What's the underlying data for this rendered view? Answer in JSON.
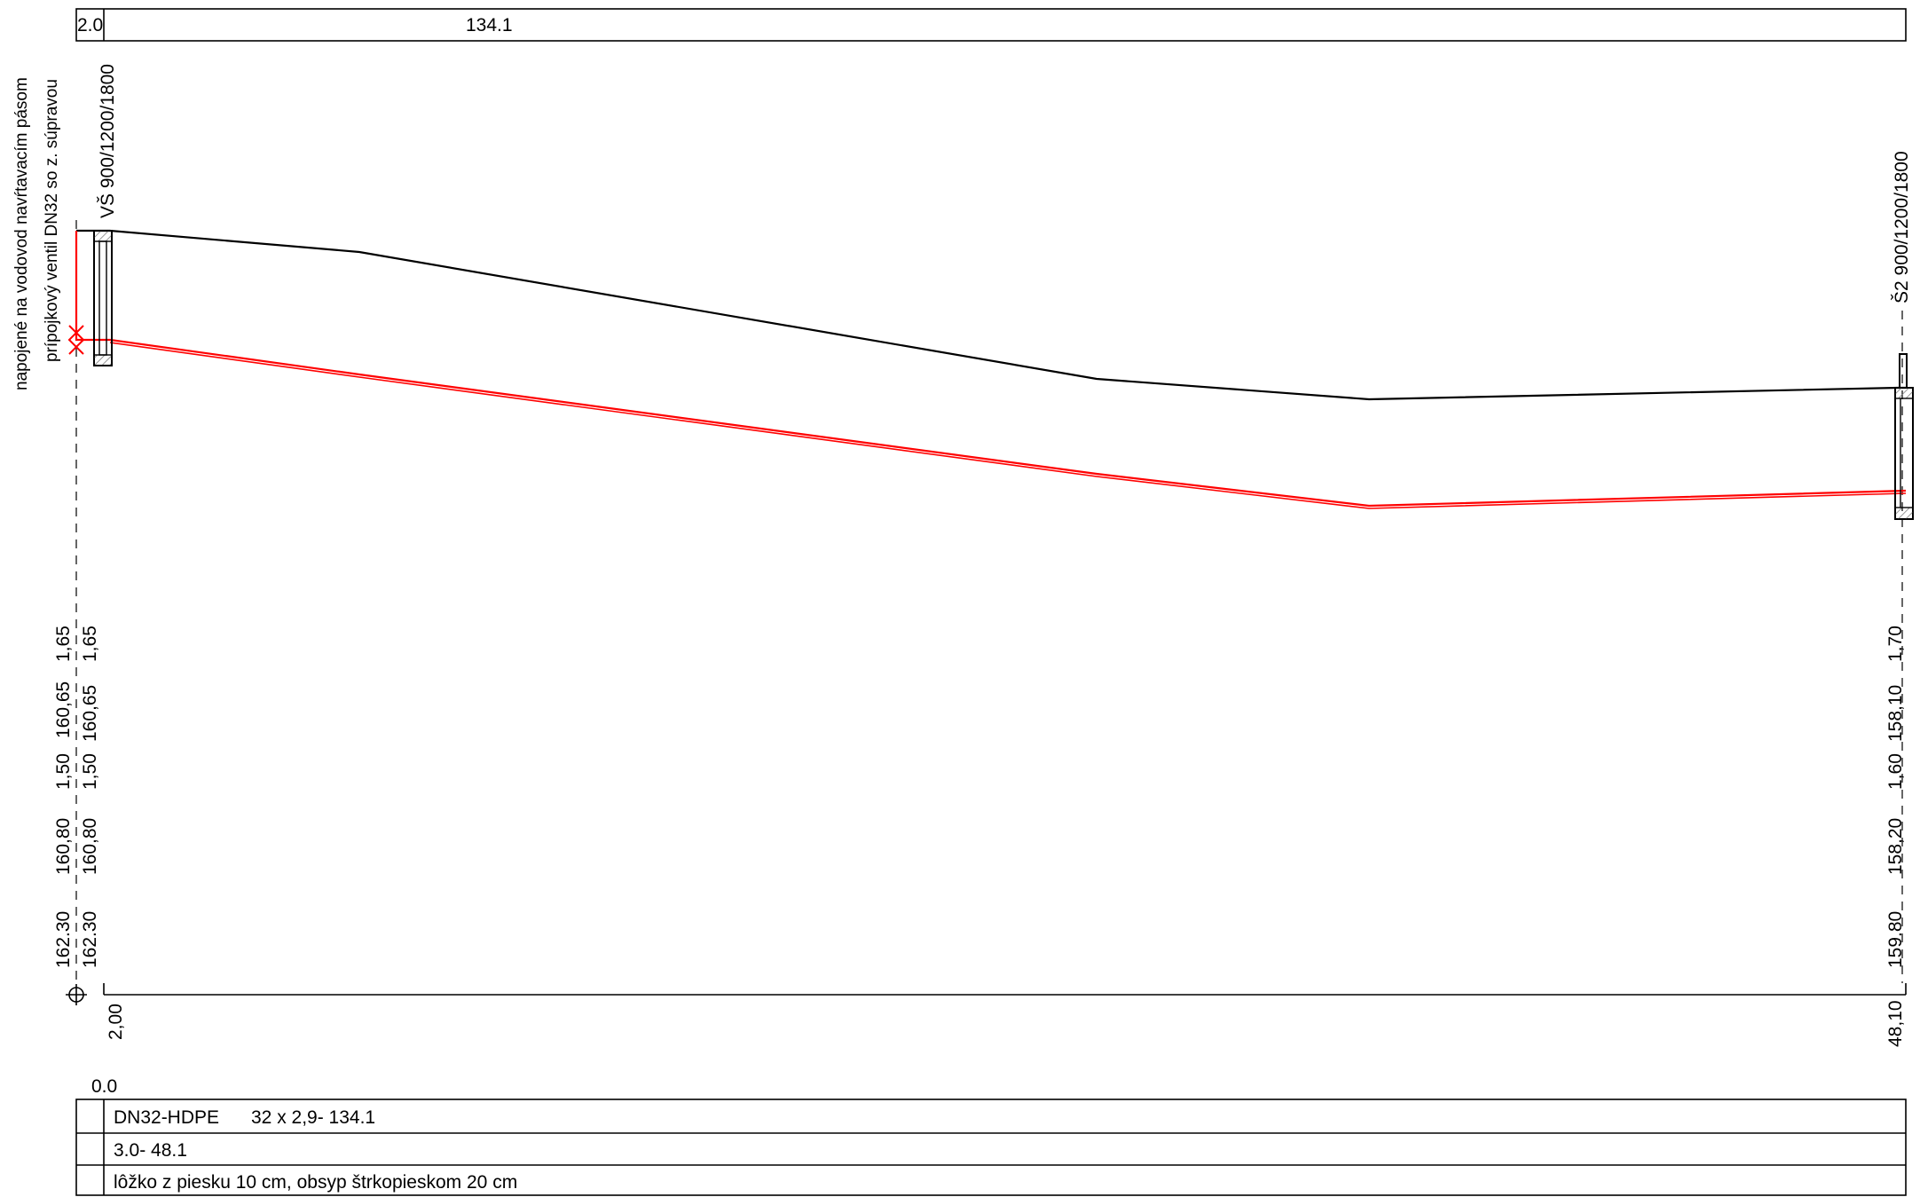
{
  "top_bar": {
    "left_value": "2.0",
    "total_value": "134.1"
  },
  "wells": {
    "left": {
      "name": "VŠ 900/1200/1800",
      "note_line1": "napojené na vodovod navŕtavacím pásom",
      "note_line2": "prípojkový ventil DN32 so z. súpravou"
    },
    "right": {
      "name": "Š2 900/1200/1800"
    }
  },
  "left_columns": {
    "col_a": [
      "1,65",
      "160,65",
      "1,50",
      "160,80",
      "162.30"
    ],
    "col_b": [
      "1,65",
      "160,65",
      "1,50",
      "160,80",
      "162.30"
    ]
  },
  "right_column": [
    "1,70",
    "158,10",
    "1,60",
    "158,20",
    "159.80"
  ],
  "stations": {
    "left": "2,00",
    "right": "48,10"
  },
  "bottom_table": {
    "start_value": "0.0",
    "pipe_label": "DN32-HDPE",
    "pipe_spec": "32 x 2,9- 134.1",
    "slope": "3.0- 48.1",
    "bedding": "lôžko z piesku 10 cm, obsyp štrkopieskom 20 cm"
  },
  "colors": {
    "terrain": "#000000",
    "pipe": "#ff0000",
    "hatch": "#9a9a9a"
  }
}
